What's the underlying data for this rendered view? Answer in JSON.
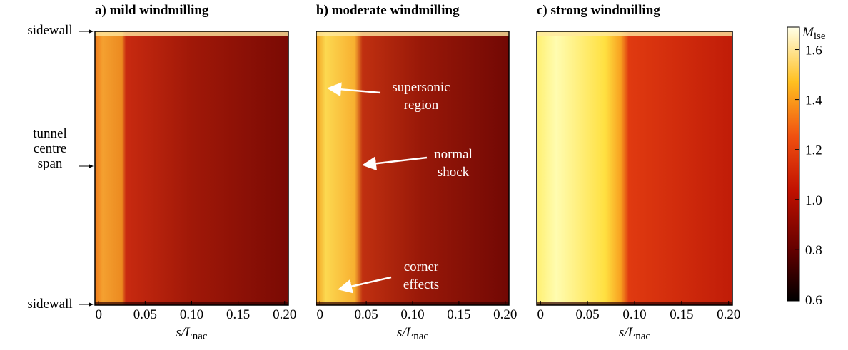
{
  "chart_data": [
    {
      "type": "heatmap",
      "title": "a) mild windmilling",
      "xlabel": {
        "text": "s/L",
        "sub": "nac"
      },
      "xlim": [
        -0.004,
        0.204
      ],
      "xticks": [
        0,
        0.05,
        {
          "value": 0.1,
          "label": "0.10"
        },
        0.15,
        {
          "value": 0.2,
          "label": "0.20"
        }
      ]
    },
    {
      "type": "heatmap",
      "title": "b) moderate windmilling",
      "xlabel": {
        "text": "s/L",
        "sub": "nac"
      },
      "xlim": [
        -0.004,
        0.204
      ],
      "xticks": [
        0,
        0.05,
        {
          "value": 0.1,
          "label": "0.10"
        },
        0.15,
        {
          "value": 0.2,
          "label": "0.20"
        }
      ],
      "annotations": [
        [
          "supersonic",
          "region"
        ],
        [
          "normal",
          "shock"
        ],
        [
          "corner",
          "effects"
        ]
      ]
    },
    {
      "type": "heatmap",
      "title": "c) strong windmilling",
      "xlabel": {
        "text": "s/L",
        "sub": "nac"
      },
      "xlim": [
        -0.004,
        0.204
      ],
      "xticks": [
        0,
        0.05,
        {
          "value": 0.1,
          "label": "0.10"
        },
        0.15,
        {
          "value": 0.2,
          "label": "0.20"
        }
      ]
    }
  ],
  "colorbar": {
    "label": {
      "text": "M",
      "sub": "ise"
    },
    "lim": [
      0.594,
      1.69
    ],
    "ticks": [
      0.6,
      0.8,
      {
        "value": 1,
        "label": "1.0"
      },
      1.2,
      1.4,
      1.6
    ]
  },
  "row_labels": [
    [
      "sidewall"
    ],
    [
      "tunnel",
      "centre",
      "span"
    ],
    [
      "sidewall"
    ]
  ]
}
